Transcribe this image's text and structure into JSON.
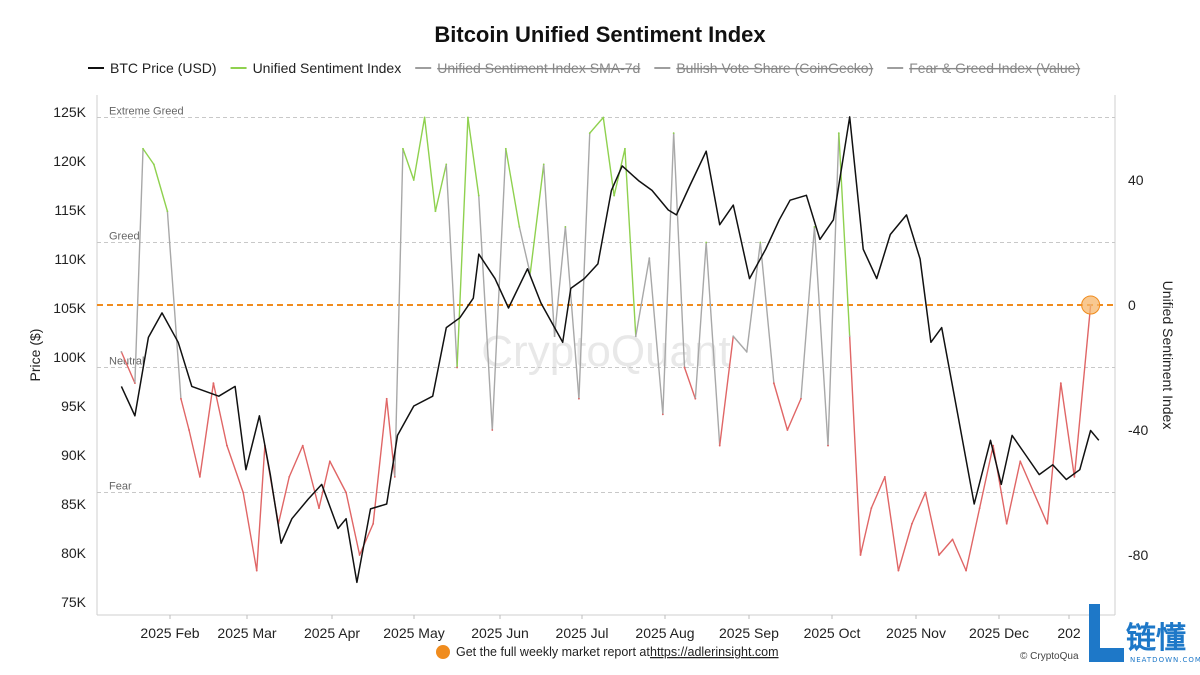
{
  "chart_data": {
    "type": "line",
    "title": "Bitcoin Unified Sentiment Index",
    "legend": [
      {
        "name": "BTC Price (USD)",
        "color": "#111111",
        "hidden": false
      },
      {
        "name": "Unified Sentiment Index",
        "color": "#8fd14f",
        "hidden": false
      },
      {
        "name": "Unified Sentiment Index SMA-7d",
        "color": "#9e9e9e",
        "hidden": true
      },
      {
        "name": "Bullish Vote Share (CoinGecko)",
        "color": "#9e9e9e",
        "hidden": true
      },
      {
        "name": "Fear & Greed Index (Value)",
        "color": "#9e9e9e",
        "hidden": true
      }
    ],
    "ylabel": "Price ($)",
    "y2label": "Unified Sentiment Index",
    "y_ticks": [
      "125K",
      "120K",
      "115K",
      "110K",
      "105K",
      "100K",
      "95K",
      "90K",
      "85K",
      "80K",
      "75K"
    ],
    "y2_ticks": [
      "40",
      "0",
      "-40",
      "-80"
    ],
    "x_ticks": [
      "2025 Feb",
      "2025 Mar",
      "2025 Apr",
      "2025 May",
      "2025 Jun",
      "2025 Jul",
      "2025 Aug",
      "2025 Sep",
      "2025 Oct",
      "2025 Nov",
      "2025 Dec",
      "202"
    ],
    "zones": [
      {
        "label": "Extreme Greed",
        "value": 60
      },
      {
        "label": "Greed",
        "value": 20
      },
      {
        "label": "Neutral",
        "value": -20
      },
      {
        "label": "Fear",
        "value": -60
      }
    ],
    "reference_line": {
      "value": 0,
      "color": "#f08c1e"
    },
    "latest_marker": {
      "date": "2026-01-03",
      "value": 0
    },
    "price_ylim": [
      75000,
      127000
    ],
    "sentiment_ylim": [
      -100,
      70
    ],
    "colors": {
      "greed": "#8fd14f",
      "fear": "#e06666",
      "neutral": "#a8a8a8",
      "price": "#111111",
      "reference": "#f08c1e"
    },
    "price_series": {
      "name": "BTC Price (USD)",
      "x": [
        "2025-01-10",
        "2025-01-15",
        "2025-01-20",
        "2025-01-25",
        "2025-01-31",
        "2025-02-05",
        "2025-02-10",
        "2025-02-15",
        "2025-02-21",
        "2025-02-25",
        "2025-03-02",
        "2025-03-06",
        "2025-03-10",
        "2025-03-14",
        "2025-03-20",
        "2025-03-25",
        "2025-03-31",
        "2025-04-03",
        "2025-04-07",
        "2025-04-12",
        "2025-04-18",
        "2025-04-22",
        "2025-04-28",
        "2025-05-05",
        "2025-05-10",
        "2025-05-15",
        "2025-05-20",
        "2025-05-22",
        "2025-05-28",
        "2025-06-02",
        "2025-06-09",
        "2025-06-14",
        "2025-06-22",
        "2025-06-25",
        "2025-06-30",
        "2025-07-05",
        "2025-07-10",
        "2025-07-14",
        "2025-07-20",
        "2025-07-25",
        "2025-07-31",
        "2025-08-03",
        "2025-08-08",
        "2025-08-14",
        "2025-08-19",
        "2025-08-24",
        "2025-08-30",
        "2025-09-05",
        "2025-09-10",
        "2025-09-14",
        "2025-09-20",
        "2025-09-25",
        "2025-09-30",
        "2025-10-02",
        "2025-10-06",
        "2025-10-11",
        "2025-10-16",
        "2025-10-21",
        "2025-10-27",
        "2025-11-01",
        "2025-11-05",
        "2025-11-09",
        "2025-11-15",
        "2025-11-21",
        "2025-11-27",
        "2025-12-01",
        "2025-12-05",
        "2025-12-10",
        "2025-12-15",
        "2025-12-20",
        "2025-12-25",
        "2025-12-30",
        "2026-01-03",
        "2026-01-06"
      ],
      "values": [
        97000,
        94000,
        102000,
        104500,
        101500,
        97000,
        96500,
        96000,
        97000,
        88500,
        94000,
        88000,
        81000,
        83500,
        85500,
        87000,
        82500,
        83500,
        77000,
        84500,
        85000,
        92000,
        95000,
        96000,
        103000,
        104000,
        106000,
        110500,
        108000,
        105000,
        109000,
        105500,
        101500,
        107000,
        108000,
        109500,
        117000,
        119500,
        118000,
        117000,
        115000,
        114500,
        117500,
        121000,
        113500,
        115500,
        108000,
        111000,
        114000,
        116000,
        116500,
        112000,
        114000,
        117500,
        124500,
        111000,
        108000,
        112500,
        114500,
        110000,
        101500,
        103000,
        94000,
        85000,
        91500,
        87000,
        92000,
        90000,
        88000,
        89000,
        87500,
        88500,
        92500,
        91500
      ]
    },
    "sentiment_series": {
      "name": "Unified Sentiment Index",
      "x": [
        "2025-01-10",
        "2025-01-15",
        "2025-01-18",
        "2025-01-22",
        "2025-01-27",
        "2025-02-01",
        "2025-02-04",
        "2025-02-08",
        "2025-02-13",
        "2025-02-18",
        "2025-02-24",
        "2025-03-01",
        "2025-03-04",
        "2025-03-09",
        "2025-03-13",
        "2025-03-18",
        "2025-03-24",
        "2025-03-28",
        "2025-04-03",
        "2025-04-08",
        "2025-04-13",
        "2025-04-18",
        "2025-04-21",
        "2025-04-24",
        "2025-04-28",
        "2025-05-02",
        "2025-05-06",
        "2025-05-10",
        "2025-05-14",
        "2025-05-18",
        "2025-05-22",
        "2025-05-27",
        "2025-06-01",
        "2025-06-06",
        "2025-06-10",
        "2025-06-15",
        "2025-06-19",
        "2025-06-23",
        "2025-06-28",
        "2025-07-02",
        "2025-07-07",
        "2025-07-11",
        "2025-07-15",
        "2025-07-19",
        "2025-07-24",
        "2025-07-29",
        "2025-08-02",
        "2025-08-06",
        "2025-08-10",
        "2025-08-14",
        "2025-08-19",
        "2025-08-24",
        "2025-08-29",
        "2025-09-03",
        "2025-09-08",
        "2025-09-13",
        "2025-09-18",
        "2025-09-23",
        "2025-09-28",
        "2025-10-02",
        "2025-10-06",
        "2025-10-10",
        "2025-10-14",
        "2025-10-19",
        "2025-10-24",
        "2025-10-29",
        "2025-11-03",
        "2025-11-08",
        "2025-11-13",
        "2025-11-18",
        "2025-11-23",
        "2025-11-28",
        "2025-12-03",
        "2025-12-08",
        "2025-12-13",
        "2025-12-18",
        "2025-12-23",
        "2025-12-28",
        "2026-01-03"
      ],
      "values": [
        -15,
        -25,
        50,
        45,
        30,
        -30,
        -40,
        -55,
        -25,
        -45,
        -60,
        -85,
        -45,
        -70,
        -55,
        -45,
        -65,
        -50,
        -60,
        -80,
        -70,
        -30,
        -55,
        50,
        40,
        60,
        30,
        45,
        -20,
        60,
        35,
        -40,
        50,
        25,
        10,
        45,
        -10,
        25,
        -30,
        55,
        60,
        35,
        50,
        -10,
        15,
        -35,
        55,
        -20,
        -30,
        20,
        -45,
        -10,
        -15,
        20,
        -25,
        -40,
        -30,
        25,
        -45,
        55,
        -10,
        -80,
        -65,
        -55,
        -85,
        -70,
        -60,
        -80,
        -75,
        -85,
        -65,
        -45,
        -70,
        -50,
        -60,
        -70,
        -25,
        -55,
        0
      ]
    }
  },
  "watermark": "CryptoQuant",
  "footer": {
    "text": "Get the full weekly market report at",
    "link": "https://adlerinsight.com"
  },
  "credit": "© CryptoQua",
  "logo": {
    "cn": "链懂",
    "en": "NEATDOWN.COM"
  }
}
